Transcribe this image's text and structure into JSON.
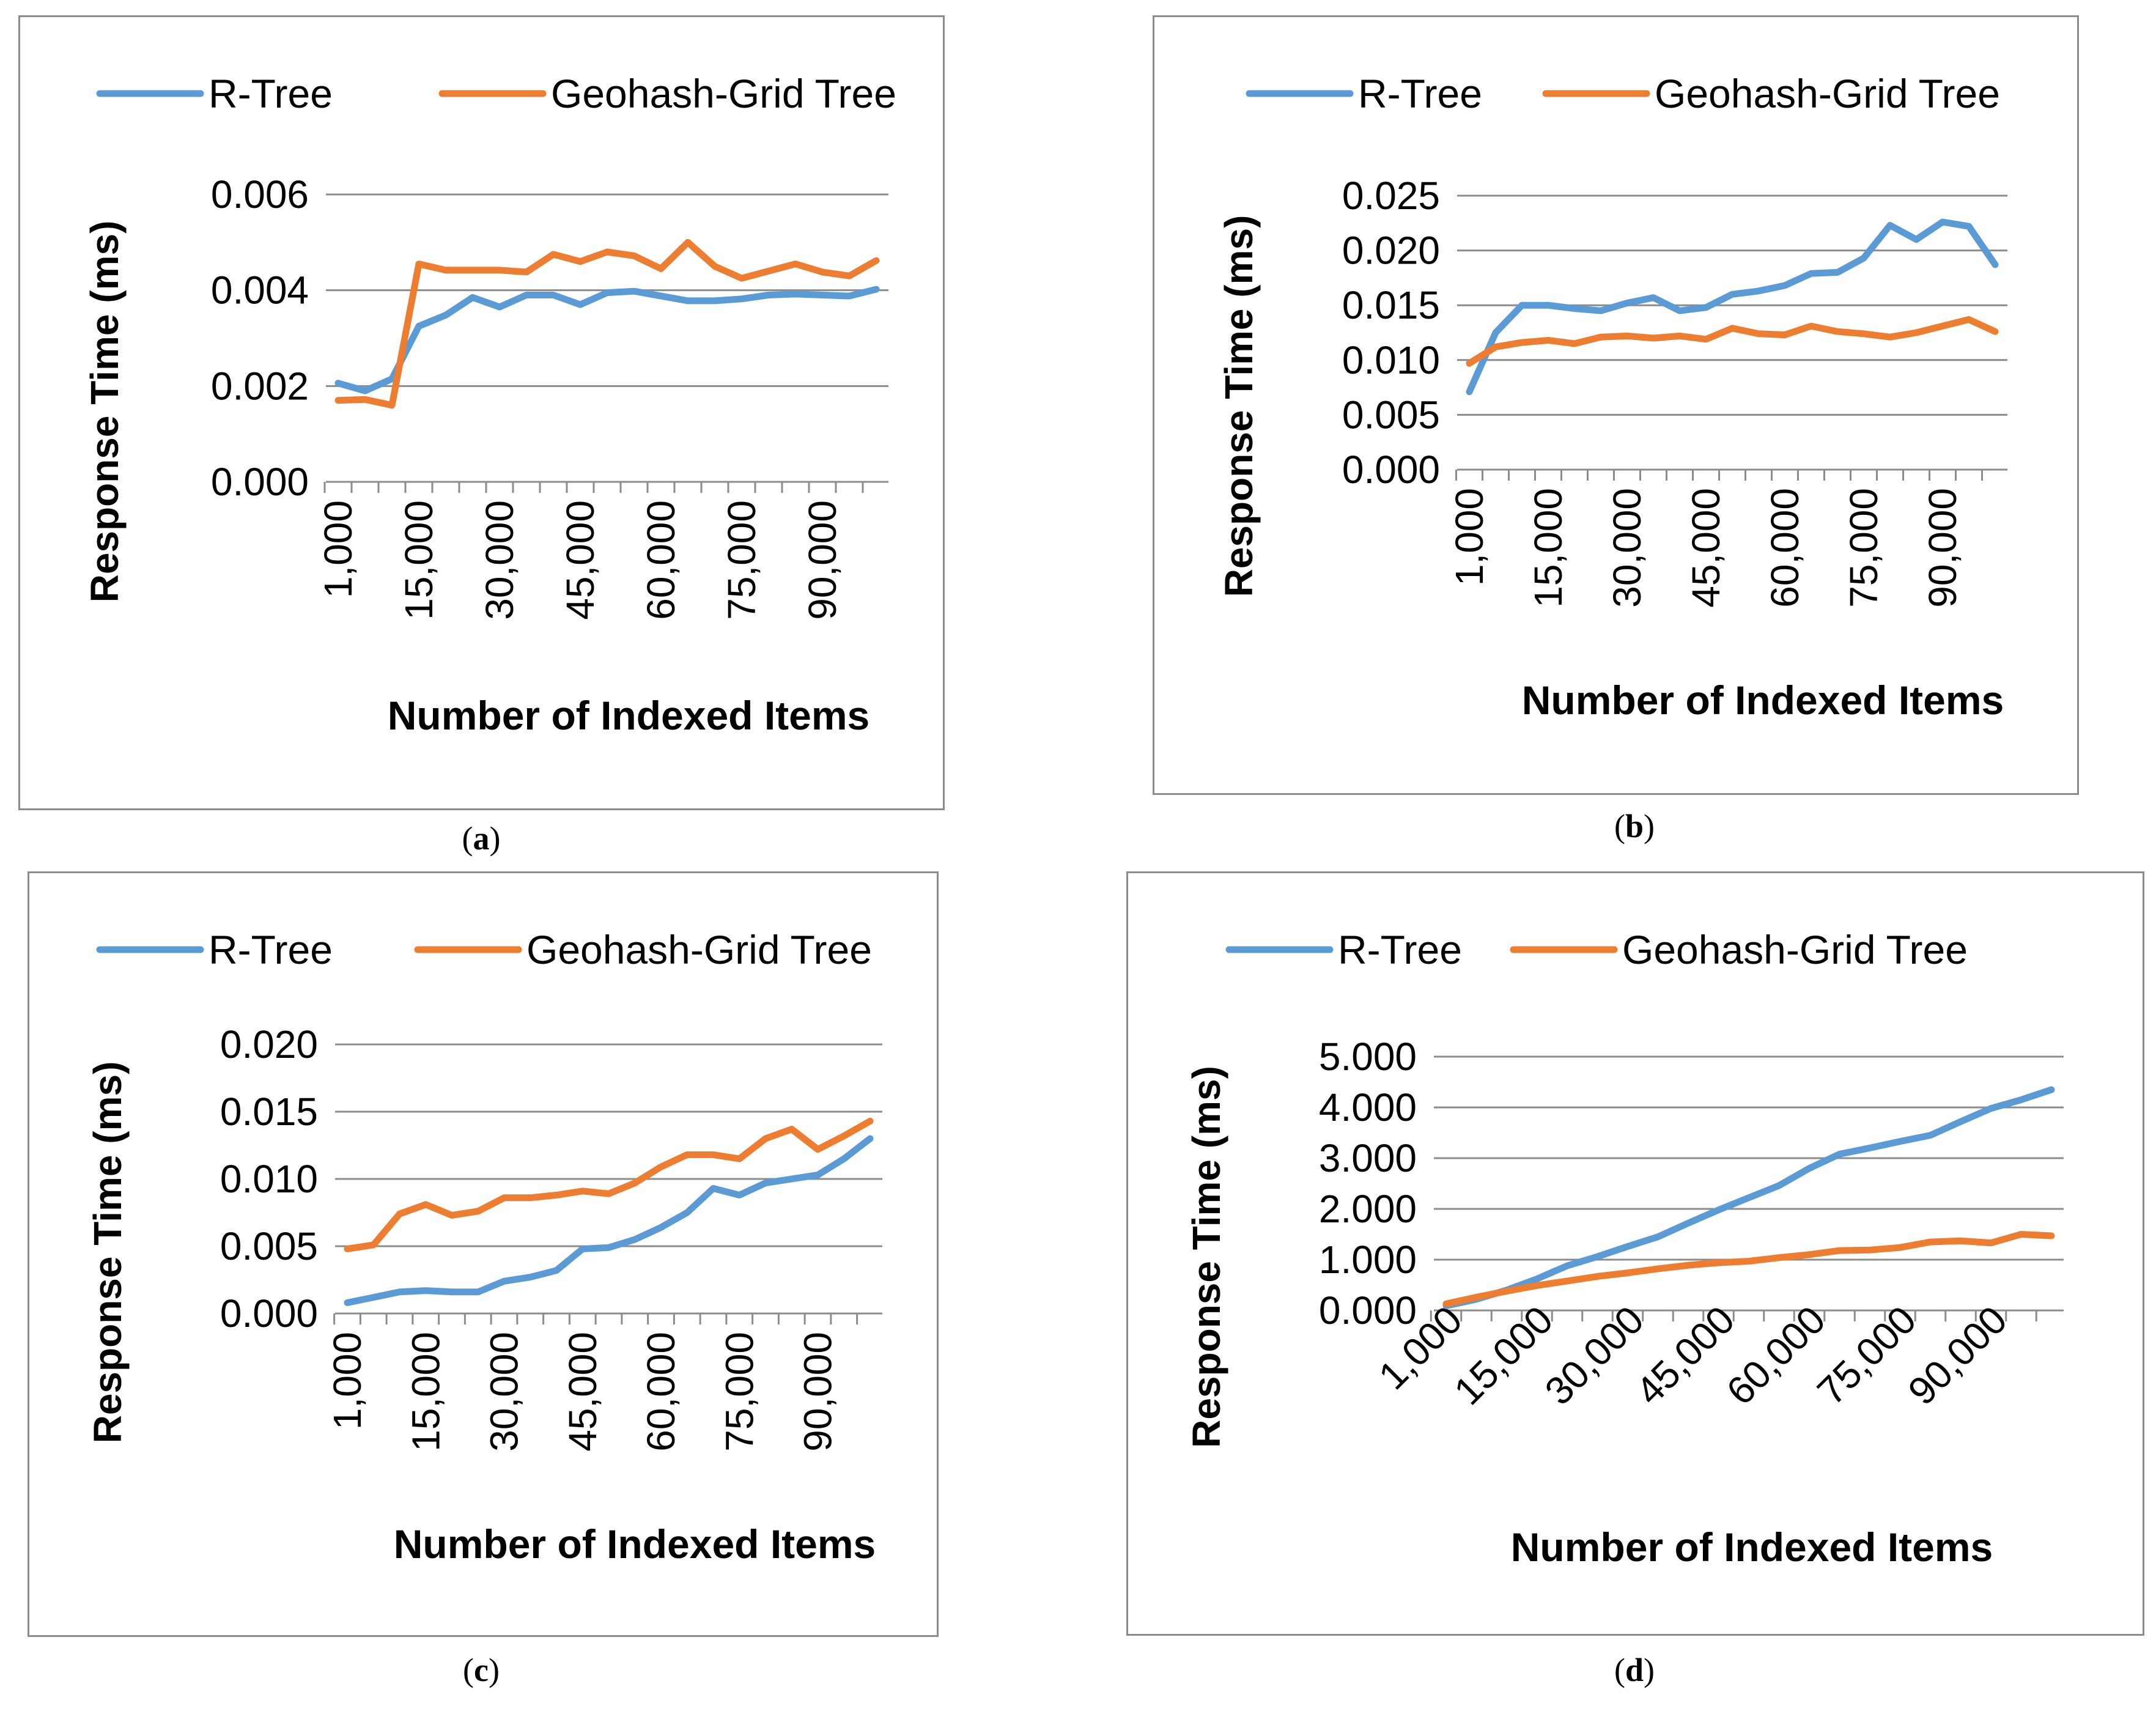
{
  "chart_data": [
    {
      "id": "a",
      "type": "line",
      "caption": "a",
      "xlabel": "Number of Indexed Items",
      "ylabel": "Response Time (ms)",
      "ylim": [
        0,
        0.006
      ],
      "yticks": [
        "0.000",
        "0.002",
        "0.004",
        "0.006"
      ],
      "ytick_values": [
        0,
        0.002,
        0.004,
        0.006
      ],
      "tick_labels": [
        "1,000",
        "15,000",
        "30,000",
        "45,000",
        "60,000",
        "75,000",
        "90,000"
      ],
      "tick_indices": [
        0,
        3,
        6,
        9,
        12,
        15,
        18
      ],
      "label_rotation": -90,
      "legend": "top",
      "series": [
        {
          "name": "R-Tree",
          "color": "#5b9bd5",
          "values": [
            0.00206,
            0.0019,
            0.00215,
            0.00325,
            0.00348,
            0.00385,
            0.00365,
            0.0039,
            0.0039,
            0.0037,
            0.00395,
            0.00398,
            0.00388,
            0.00378,
            0.00378,
            0.00382,
            0.0039,
            0.00392,
            0.0039,
            0.00388,
            0.00402
          ]
        },
        {
          "name": "Geohash-Grid Tree",
          "color": "#ed7d31",
          "values": [
            0.0017,
            0.00172,
            0.0016,
            0.00455,
            0.00442,
            0.00442,
            0.00442,
            0.00438,
            0.00475,
            0.0046,
            0.0048,
            0.00472,
            0.00445,
            0.005,
            0.0045,
            0.00425,
            0.0044,
            0.00455,
            0.00438,
            0.0043,
            0.00462
          ]
        }
      ]
    },
    {
      "id": "b",
      "type": "line",
      "caption": "b",
      "xlabel": "Number of Indexed Items",
      "ylabel": "Response Time (ms)",
      "ylim": [
        0,
        0.025
      ],
      "yticks": [
        "0.000",
        "0.005",
        "0.010",
        "0.015",
        "0.020",
        "0.025"
      ],
      "ytick_values": [
        0,
        0.005,
        0.01,
        0.015,
        0.02,
        0.025
      ],
      "tick_labels": [
        "1,000",
        "15,000",
        "30,000",
        "45,000",
        "60,000",
        "75,000",
        "90,000"
      ],
      "tick_indices": [
        0,
        3,
        6,
        9,
        12,
        15,
        18
      ],
      "label_rotation": -90,
      "legend": "top",
      "series": [
        {
          "name": "R-Tree",
          "color": "#5b9bd5",
          "values": [
            0.0071,
            0.0125,
            0.015,
            0.015,
            0.0147,
            0.0145,
            0.0152,
            0.0157,
            0.0145,
            0.0148,
            0.016,
            0.0163,
            0.0168,
            0.0179,
            0.018,
            0.0193,
            0.0223,
            0.021,
            0.0226,
            0.0222,
            0.0187
          ]
        },
        {
          "name": "Geohash-Grid Tree",
          "color": "#ed7d31",
          "values": [
            0.0097,
            0.0112,
            0.0116,
            0.0118,
            0.0115,
            0.0121,
            0.0122,
            0.012,
            0.0122,
            0.0119,
            0.0129,
            0.0124,
            0.0123,
            0.0131,
            0.0126,
            0.0124,
            0.0121,
            0.0125,
            0.0131,
            0.0137,
            0.0126
          ]
        }
      ]
    },
    {
      "id": "c",
      "type": "line",
      "caption": "c",
      "xlabel": "Number of Indexed Items",
      "ylabel": "Response Time (ms)",
      "ylim": [
        0,
        0.02
      ],
      "yticks": [
        "0.000",
        "0.005",
        "0.010",
        "0.015",
        "0.020"
      ],
      "ytick_values": [
        0,
        0.005,
        0.01,
        0.015,
        0.02
      ],
      "tick_labels": [
        "1,000",
        "15,000",
        "30,000",
        "45,000",
        "60,000",
        "75,000",
        "90,000"
      ],
      "tick_indices": [
        0,
        3,
        6,
        9,
        12,
        15,
        18
      ],
      "label_rotation": -90,
      "legend": "top",
      "series": [
        {
          "name": "R-Tree",
          "color": "#5b9bd5",
          "values": [
            0.0008,
            0.0012,
            0.0016,
            0.0017,
            0.0016,
            0.0016,
            0.0024,
            0.0027,
            0.0032,
            0.0048,
            0.0049,
            0.0055,
            0.0064,
            0.0075,
            0.0093,
            0.0088,
            0.0097,
            0.01,
            0.0103,
            0.0115,
            0.013
          ]
        },
        {
          "name": "Geohash-Grid Tree",
          "color": "#ed7d31",
          "values": [
            0.0048,
            0.0051,
            0.0074,
            0.0081,
            0.0073,
            0.0076,
            0.0086,
            0.0086,
            0.0088,
            0.0091,
            0.0089,
            0.0097,
            0.0109,
            0.0118,
            0.0118,
            0.0115,
            0.013,
            0.0137,
            0.0122,
            0.0132,
            0.0143
          ]
        }
      ]
    },
    {
      "id": "d",
      "type": "line",
      "caption": "d",
      "xlabel": "Number of Indexed Items",
      "ylabel": "Response Time (ms)",
      "ylim": [
        0,
        5
      ],
      "yticks": [
        "0.000",
        "1.000",
        "2.000",
        "3.000",
        "4.000",
        "5.000"
      ],
      "ytick_values": [
        0,
        1,
        2,
        3,
        4,
        5
      ],
      "tick_labels": [
        "1,000",
        "15,000",
        "30,000",
        "45,000",
        "60,000",
        "75,000",
        "90,000"
      ],
      "tick_indices": [
        0,
        3,
        6,
        9,
        12,
        15,
        18
      ],
      "label_rotation": -45,
      "legend": "top",
      "series": [
        {
          "name": "R-Tree",
          "color": "#5b9bd5",
          "values": [
            0.09,
            0.22,
            0.4,
            0.62,
            0.88,
            1.06,
            1.26,
            1.45,
            1.72,
            1.98,
            2.22,
            2.46,
            2.8,
            3.08,
            3.2,
            3.33,
            3.45,
            3.72,
            3.98,
            4.15,
            4.35
          ]
        },
        {
          "name": "Geohash-Grid Tree",
          "color": "#ed7d31",
          "values": [
            0.13,
            0.26,
            0.38,
            0.49,
            0.58,
            0.67,
            0.74,
            0.82,
            0.89,
            0.94,
            0.97,
            1.04,
            1.1,
            1.18,
            1.19,
            1.24,
            1.35,
            1.37,
            1.33,
            1.5,
            1.47
          ]
        }
      ]
    }
  ]
}
